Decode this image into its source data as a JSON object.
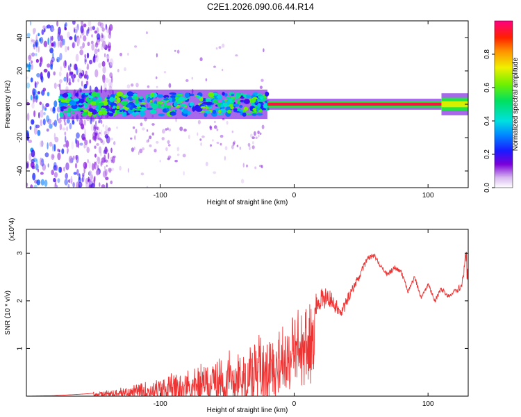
{
  "title": "C2E1.2026.090.06.44.R14",
  "chart_data": [
    {
      "type": "heatmap",
      "name": "spectrogram",
      "xlabel": "Height of straight line (km)",
      "ylabel": "Frequency (Hz)",
      "xlim": [
        -200,
        130
      ],
      "ylim": [
        -50,
        50
      ],
      "xticks": [
        -100,
        0,
        100
      ],
      "xtick_labels": [
        "-100",
        "0",
        "100"
      ],
      "yticks": [
        -40,
        -20,
        0,
        20,
        40
      ],
      "ytick_labels": [
        "-40",
        "-20",
        "0",
        "20",
        "40"
      ],
      "colorbar": {
        "label": "Normalized spectral amplitude",
        "range": [
          0,
          1
        ],
        "ticks": [
          0.0,
          0.2,
          0.4,
          0.6,
          0.8
        ],
        "tick_labels": [
          "0.0",
          "0.2",
          "0.4",
          "0.6",
          "0.8"
        ]
      },
      "signal_band": {
        "center_freq_hz": 0,
        "features": [
          {
            "x_start": -175,
            "x_end": -20,
            "amplitude": 0.35,
            "half_width_hz": 4
          },
          {
            "x_start": -20,
            "x_end": 110,
            "amplitude": 0.95,
            "half_width_hz": 1.5
          },
          {
            "x_start": 110,
            "x_end": 130,
            "amplitude": 0.7,
            "half_width_hz": 3
          }
        ]
      },
      "noise_region": {
        "x_start": -200,
        "x_end": -150,
        "amplitude": 0.25
      }
    },
    {
      "type": "line",
      "name": "snr",
      "xlabel": "Height of straight line (km)",
      "ylabel": "SNR (10 * v/v)",
      "ylabel_scale": "(x10^4)",
      "xlim": [
        -200,
        130
      ],
      "ylim": [
        0,
        3.5
      ],
      "xticks": [
        -100,
        0,
        100
      ],
      "xtick_labels": [
        "-100",
        "0",
        "100"
      ],
      "yticks": [
        1,
        2,
        3
      ],
      "ytick_labels": [
        "1",
        "2",
        "3"
      ],
      "series": [
        {
          "name": "SNR",
          "color": "#ee3333",
          "x": [
            -200,
            -180,
            -160,
            -140,
            -120,
            -100,
            -80,
            -60,
            -40,
            -30,
            -20,
            -10,
            -5,
            0,
            5,
            10,
            15,
            20,
            25,
            30,
            35,
            40,
            45,
            50,
            55,
            60,
            62,
            65,
            70,
            75,
            80,
            85,
            90,
            95,
            100,
            105,
            110,
            115,
            120,
            125,
            128,
            130
          ],
          "y": [
            0.0,
            0.01,
            0.04,
            0.08,
            0.14,
            0.22,
            0.35,
            0.48,
            0.68,
            0.8,
            0.95,
            1.1,
            1.3,
            1.45,
            1.6,
            1.8,
            1.9,
            2.0,
            2.1,
            1.95,
            1.7,
            2.05,
            2.3,
            2.6,
            2.9,
            2.95,
            2.85,
            2.7,
            2.55,
            2.7,
            2.6,
            2.2,
            2.5,
            2.05,
            2.35,
            2.0,
            2.25,
            2.1,
            2.2,
            2.3,
            2.9,
            2.6
          ],
          "noise_amplitude": [
            0.0,
            0.02,
            0.05,
            0.1,
            0.18,
            0.3,
            0.45,
            0.6,
            0.75,
            0.9,
            1.0,
            0.9,
            0.85,
            0.8,
            0.7,
            0.35,
            0.3,
            0.25,
            0.2,
            0.18,
            0.15,
            0.12,
            0.1,
            0.08,
            0.06,
            0.05,
            0.05,
            0.05,
            0.05,
            0.05,
            0.05,
            0.05,
            0.05,
            0.05,
            0.05,
            0.05,
            0.05,
            0.05,
            0.06,
            0.08,
            0.2,
            0.4
          ]
        }
      ]
    }
  ]
}
